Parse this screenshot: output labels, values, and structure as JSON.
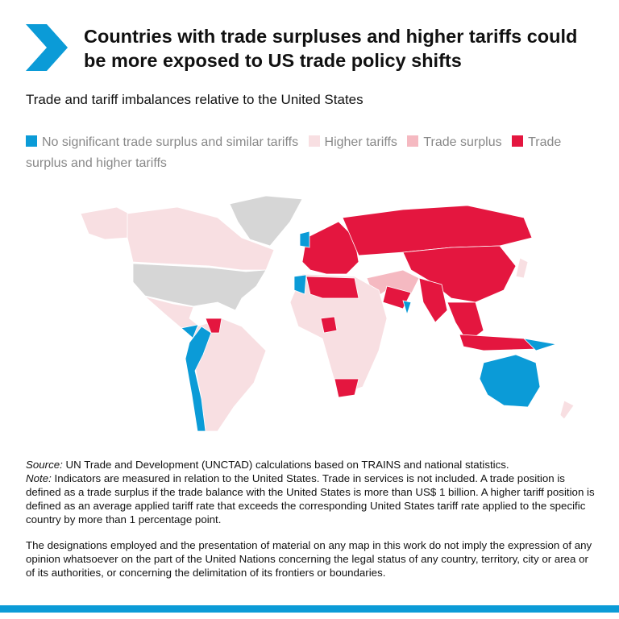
{
  "header": {
    "title": "Countries with trade surpluses and higher tariffs could be more exposed to US trade policy shifts",
    "subtitle": "Trade and tariff imbalances relative to the United States"
  },
  "legend": [
    {
      "label": "No significant trade surplus and similar tariffs",
      "color": "#0b9bd7"
    },
    {
      "label": "Higher tariffs",
      "color": "#f8dfe2"
    },
    {
      "label": "Trade surplus",
      "color": "#f5b9c1"
    },
    {
      "label": "Trade surplus and higher tariffs",
      "color": "#e4163f"
    }
  ],
  "notes": {
    "source_label": "Source:",
    "source_text": "UN Trade and Development (UNCTAD) calculations based on TRAINS and national statistics.",
    "note_label": "Note:",
    "note_text": "Indicators are measured in relation to the United States. Trade in services is not included. A trade position is defined as a trade surplus if the trade balance with the United States is more than US$ 1 billion. A higher tariff position is defined as an average applied tariff rate that exceeds the corresponding United States tariff rate applied to the specific country by more than 1 percentage point.",
    "disclaimer": "The designations employed and the presentation of material on any map in this work do not imply the expression of any opinion whatsoever on the part of the United Nations concerning the legal status of any country, territory, city or area or of its authorities, or concerning the delimitation of its frontiers or boundaries."
  }
}
